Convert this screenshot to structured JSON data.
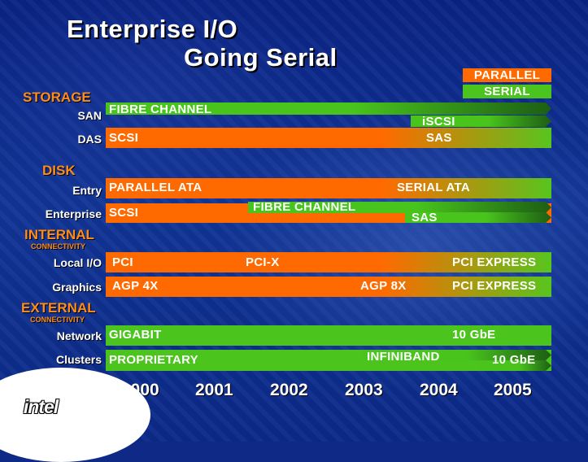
{
  "title": {
    "line1": "Enterprise I/O",
    "line2": "Going Serial"
  },
  "legend": {
    "parallel": "PARALLEL",
    "serial": "SERIAL"
  },
  "sections": {
    "storage": "STORAGE",
    "disk": "DISK",
    "internal": "INTERNAL",
    "internal_sub": "CONNECTIVITY",
    "external": "EXTERNAL",
    "external_sub": "CONNECTIVITY"
  },
  "rows": {
    "san": {
      "label": "SAN",
      "main": "FIBRE CHANNEL",
      "sub": "iSCSI"
    },
    "das": {
      "label": "DAS",
      "left": "SCSI",
      "right": "SAS"
    },
    "entry": {
      "label": "Entry",
      "left": "PARALLEL ATA",
      "right": "SERIAL ATA"
    },
    "enterprise": {
      "label": "Enterprise",
      "left": "SCSI",
      "mid": "FIBRE CHANNEL",
      "sub": "SAS"
    },
    "localio": {
      "label": "Local I/O",
      "t1": "PCI",
      "t2": "PCI-X",
      "t3": "PCI EXPRESS"
    },
    "graphics": {
      "label": "Graphics",
      "t1": "AGP 4X",
      "t2": "AGP 8X",
      "t3": "PCI EXPRESS"
    },
    "network": {
      "label": "Network",
      "left": "GIGABIT",
      "right": "10 GbE"
    },
    "clusters": {
      "label": "Clusters",
      "left": "PROPRIETARY",
      "mid": "INFINIBAND",
      "sub": "10 GbE"
    }
  },
  "years": [
    "2000",
    "2001",
    "2002",
    "2003",
    "2004",
    "2005"
  ],
  "logo": "intel",
  "colors": {
    "parallel": "#ff6a00",
    "serial": "#4cc41e",
    "section": "#ff8c1a",
    "background": "#0e2a86"
  }
}
